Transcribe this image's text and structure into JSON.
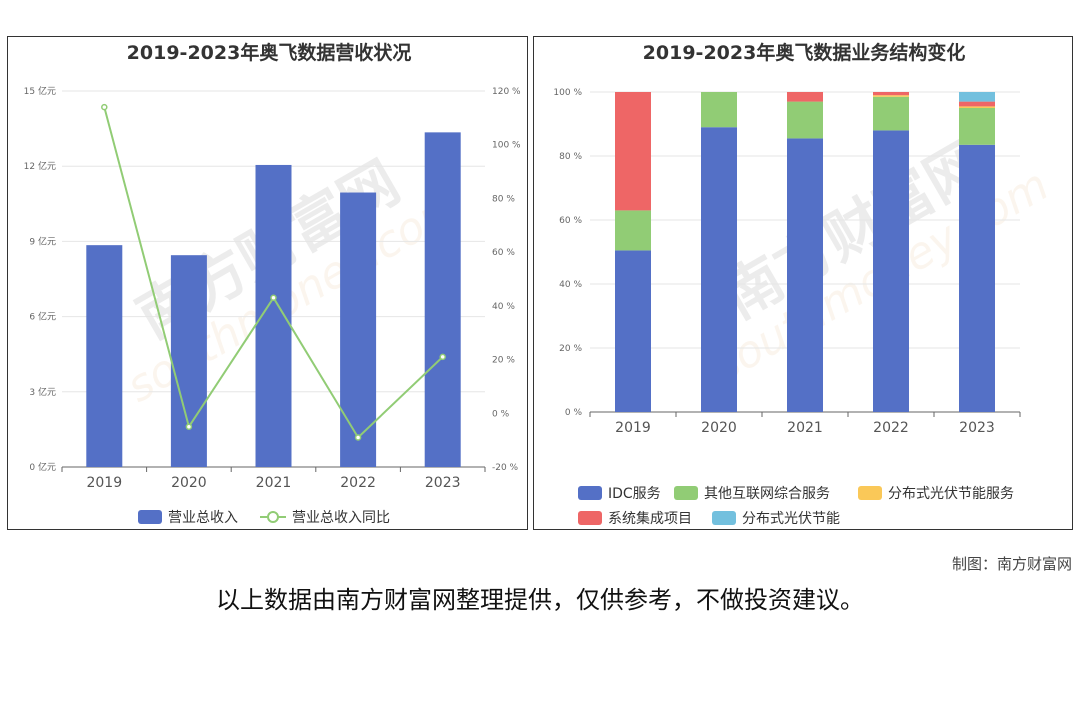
{
  "colors": {
    "bar_blue": "#5470c6",
    "line_green": "#91cc75",
    "yellow": "#fac858",
    "red": "#ee6666",
    "cyan": "#73c0de",
    "axis": "#666666",
    "grid": "#e6e6e6"
  },
  "watermark": {
    "big": "南方财富网",
    "url": "southmoney.com"
  },
  "credit": "制图：南方财富网",
  "disclaimer": "以上数据由南方财富网整理提供，仅供参考，不做投资建议。",
  "chart_data": [
    {
      "type": "bar",
      "title": "2019-2023年奥飞数据营收状况",
      "categories": [
        "2019",
        "2020",
        "2021",
        "2022",
        "2023"
      ],
      "series": [
        {
          "name": "营业总收入",
          "type": "bar",
          "axis": "left",
          "values": [
            8.85,
            8.45,
            12.05,
            10.95,
            13.35
          ]
        },
        {
          "name": "营业总收入同比",
          "type": "line",
          "axis": "right",
          "values": [
            114,
            -5,
            43,
            -9,
            21
          ]
        }
      ],
      "y_left": {
        "min": 0,
        "max": 15,
        "step": 3,
        "unit": "亿元",
        "tick_labels": [
          "0 亿元",
          "3 亿元",
          "6 亿元",
          "9 亿元",
          "12 亿元",
          "15 亿元"
        ]
      },
      "y_right": {
        "min": -20,
        "max": 120,
        "step": 20,
        "unit": "%",
        "tick_labels": [
          "-20 %",
          "0 %",
          "20 %",
          "40 %",
          "60 %",
          "80 %",
          "100 %",
          "120 %"
        ]
      },
      "grid": true,
      "legend": "bottom-center"
    },
    {
      "type": "bar",
      "stacked": true,
      "title": "2019-2023年奥飞数据业务结构变化",
      "categories": [
        "2019",
        "2020",
        "2021",
        "2022",
        "2023"
      ],
      "series": [
        {
          "name": "IDC服务",
          "values": [
            50.5,
            89,
            85.5,
            88,
            83.5
          ]
        },
        {
          "name": "其他互联网综合服务",
          "values": [
            12.5,
            11,
            11.5,
            10.5,
            11.5
          ]
        },
        {
          "name": "分布式光伏节能服务",
          "values": [
            0,
            0,
            0,
            0.5,
            0.5
          ]
        },
        {
          "name": "系统集成项目",
          "values": [
            37,
            0,
            3,
            1,
            1.5
          ]
        },
        {
          "name": "分布式光伏节能",
          "values": [
            0,
            0,
            0,
            0,
            3
          ]
        }
      ],
      "y": {
        "min": 0,
        "max": 100,
        "step": 20,
        "tick_labels": [
          "0 %",
          "20 %",
          "40 %",
          "60 %",
          "80 %",
          "100 %"
        ]
      },
      "grid": true,
      "legend": "bottom-center"
    }
  ]
}
